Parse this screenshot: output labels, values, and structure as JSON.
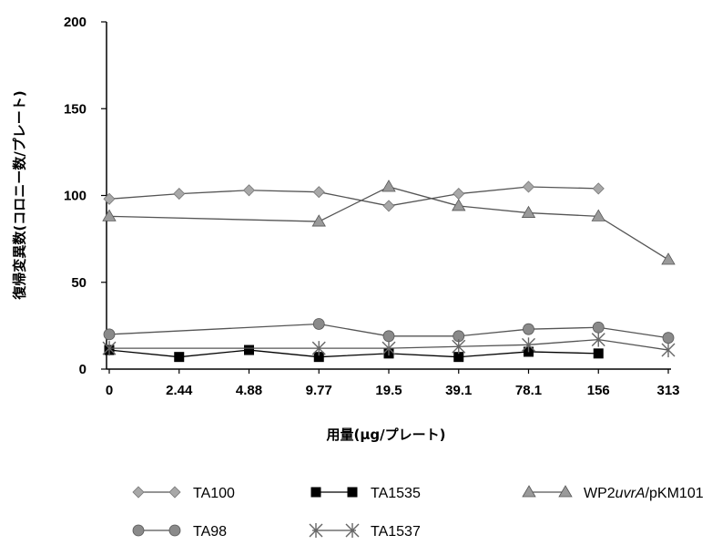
{
  "chart_data": {
    "type": "line",
    "title": "",
    "xlabel": "用量(μg/プレート)",
    "ylabel": "復帰変異数(コロニー数/プレート)",
    "categories": [
      "0",
      "2.44",
      "4.88",
      "9.77",
      "19.5",
      "39.1",
      "78.1",
      "156",
      "313"
    ],
    "ylim": [
      0,
      200
    ],
    "yticks": [
      "0",
      "50",
      "100",
      "150",
      "200"
    ],
    "grid": false,
    "legend_placement": "bottom",
    "series": [
      {
        "name": "TA100",
        "marker": "diamond",
        "color": "#a8a8a8",
        "values": [
          98,
          101,
          103,
          102,
          94,
          101,
          105,
          104,
          null
        ]
      },
      {
        "name": "TA1535",
        "marker": "square",
        "color": "#000000",
        "values": [
          11,
          7,
          11,
          7,
          9,
          7,
          10,
          9,
          null
        ]
      },
      {
        "name": "WP2uvrA/pKM101",
        "name_prefix": "WP2",
        "name_italic": "uvrA",
        "name_suffix": "/pKM101",
        "marker": "triangle",
        "color": "#9a9a9a",
        "values": [
          88,
          null,
          null,
          85,
          105,
          94,
          90,
          88,
          63
        ]
      },
      {
        "name": "TA98",
        "marker": "circle",
        "color": "#8a8a8a",
        "values": [
          20,
          null,
          null,
          26,
          19,
          19,
          23,
          24,
          18
        ]
      },
      {
        "name": "TA1537",
        "marker": "asterisk",
        "color": "#666666",
        "values": [
          12,
          null,
          null,
          12,
          12,
          13,
          14,
          17,
          11
        ]
      }
    ]
  }
}
